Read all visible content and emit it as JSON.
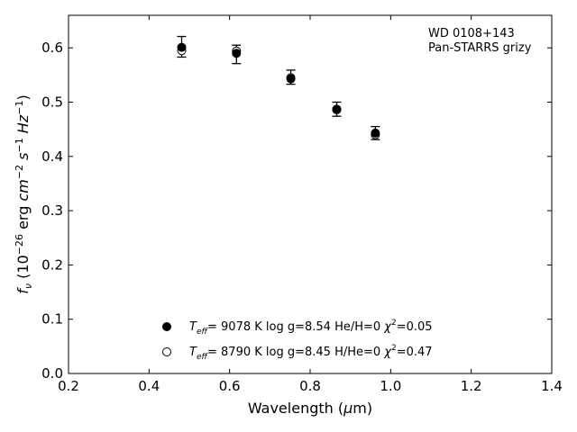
{
  "chart_data": {
    "type": "scatter",
    "annotation_lines": [
      "WD 0108+143",
      "Pan-STARRS grizy"
    ],
    "xlabel_pre": "Wavelength (",
    "xlabel_mu": "μ",
    "xlabel_post": "m)",
    "ylabel": {
      "f": "f",
      "nu": "ν",
      "unit_open": " (10",
      "exp1": "−26",
      "erg": " erg ",
      "cm": "cm",
      "exp2": "−2",
      "s": " s",
      "exp3": "−1",
      "hz": " Hz",
      "exp4": "−1",
      "close": ")"
    },
    "xlim": [
      0.2,
      1.4
    ],
    "ylim": [
      0.0,
      0.66
    ],
    "xticks": [
      0.2,
      0.4,
      0.6,
      0.8,
      1.0,
      1.2,
      1.4
    ],
    "yticks": [
      0.0,
      0.1,
      0.2,
      0.3,
      0.4,
      0.5,
      0.6
    ],
    "xtick_labels": [
      "0.2",
      "0.4",
      "0.6",
      "0.8",
      "1.0",
      "1.2",
      "1.4"
    ],
    "ytick_labels": [
      "0.0",
      "0.1",
      "0.2",
      "0.3",
      "0.4",
      "0.5",
      "0.6"
    ],
    "grid": false,
    "legend_position": "lower-center",
    "observed": {
      "x": [
        0.481,
        0.617,
        0.752,
        0.866,
        0.962
      ],
      "y": [
        0.602,
        0.588,
        0.546,
        0.487,
        0.443
      ],
      "yerr": [
        0.019,
        0.017,
        0.013,
        0.013,
        0.012
      ]
    },
    "series": [
      {
        "marker": "filled-circle",
        "x": [
          0.481,
          0.617,
          0.752,
          0.866,
          0.962
        ],
        "y": [
          0.601,
          0.59,
          0.543,
          0.486,
          0.443
        ],
        "legend": {
          "T": "T",
          "eff": "eff",
          "eq": "=  9078 K  log g=8.54  He/H=0  ",
          "chi": "χ",
          "sq": "2",
          "val": "=0.05"
        }
      },
      {
        "marker": "open-circle",
        "x": [
          0.481,
          0.617,
          0.752,
          0.866,
          0.962
        ],
        "y": [
          0.595,
          0.594,
          0.545,
          0.487,
          0.44
        ],
        "legend": {
          "T": "T",
          "eff": "eff",
          "eq": "=  8790 K  log g=8.45  H/He=0  ",
          "chi": "χ",
          "sq": "2",
          "val": "=0.47"
        }
      }
    ]
  }
}
